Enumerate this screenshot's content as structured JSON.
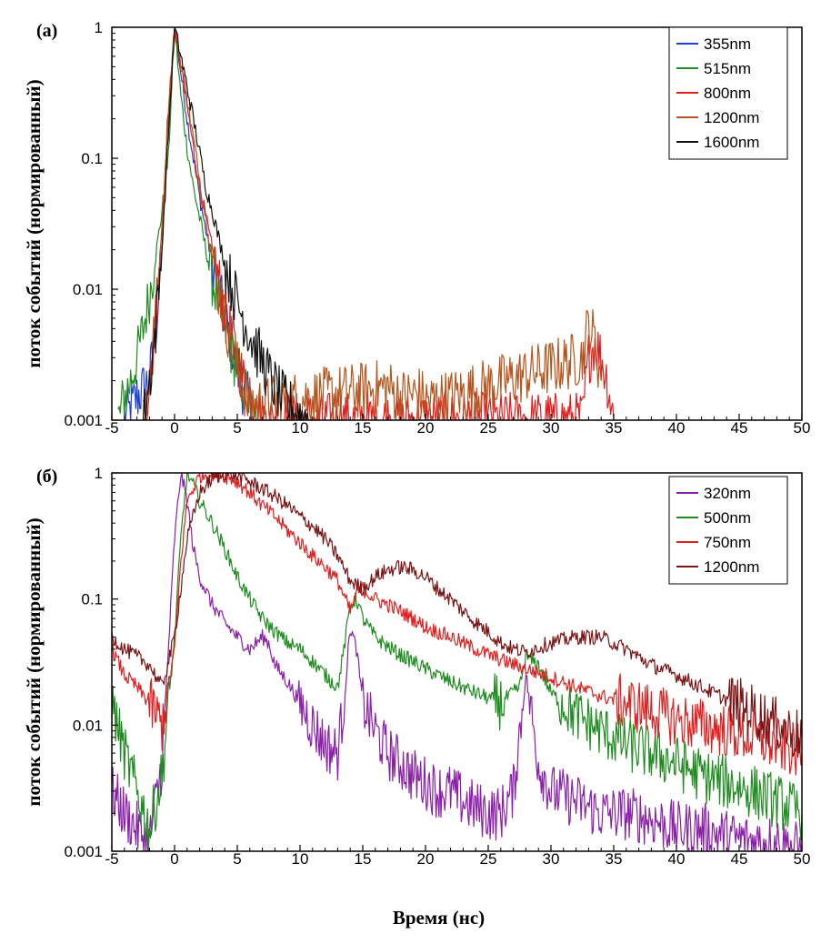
{
  "chart_data": [
    {
      "type": "line",
      "panel_label": "(a)",
      "xlabel": "",
      "ylabel": "поток событий (нормированный)",
      "xlim": [
        -5,
        50
      ],
      "ylim": [
        0.001,
        1
      ],
      "yscale": "log",
      "x_ticks": [
        "-5",
        "0",
        "5",
        "10",
        "15",
        "20",
        "25",
        "30",
        "35",
        "40",
        "45",
        "50"
      ],
      "y_ticks": [
        "0.001",
        "0.01",
        "0.1",
        "1"
      ],
      "legend_position": "top-right",
      "series": [
        {
          "name": "355nm",
          "color": "#1f3fd0",
          "x": [
            -4.0,
            -3.5,
            -3.0,
            -2.0,
            -1.5,
            -1.0,
            -0.5,
            0.0,
            0.5,
            1.0,
            1.5,
            2.0,
            2.5,
            3.0,
            3.5,
            4.0,
            4.5,
            5.0,
            5.5,
            6.0,
            6.5
          ],
          "y": [
            0.001,
            0.0012,
            0.0015,
            0.002,
            0.005,
            0.02,
            0.2,
            1.0,
            0.45,
            0.2,
            0.1,
            0.05,
            0.028,
            0.016,
            0.01,
            0.006,
            0.004,
            0.0025,
            0.0017,
            0.0013,
            0.001
          ]
        },
        {
          "name": "515nm",
          "color": "#1e8c1e",
          "x": [
            -4.5,
            -4.0,
            -3.5,
            -3.0,
            -2.5,
            -2.0,
            -1.5,
            -1.0,
            -0.5,
            0.0,
            0.5,
            1.0,
            1.5,
            2.0,
            2.5,
            3.0,
            3.5,
            4.0,
            4.5,
            5.0,
            5.5,
            6.0,
            6.5
          ],
          "y": [
            0.001,
            0.0015,
            0.002,
            0.003,
            0.005,
            0.009,
            0.018,
            0.04,
            0.1,
            1.0,
            0.3,
            0.12,
            0.06,
            0.035,
            0.02,
            0.012,
            0.008,
            0.005,
            0.0035,
            0.0025,
            0.0018,
            0.0013,
            0.001
          ]
        },
        {
          "name": "800nm",
          "color": "#e02020",
          "x": [
            -2.5,
            -2.0,
            -1.5,
            -1.0,
            -0.5,
            0.0,
            0.5,
            1.0,
            1.5,
            2.0,
            2.5,
            3.0,
            3.5,
            4.0,
            4.5,
            5.0,
            5.5,
            6.0,
            6.5,
            7.0,
            32.5,
            33.0,
            33.5,
            34.0,
            34.5,
            35.0
          ],
          "y": [
            0.001,
            0.002,
            0.006,
            0.03,
            0.2,
            1.0,
            0.5,
            0.25,
            0.12,
            0.06,
            0.035,
            0.02,
            0.012,
            0.007,
            0.0045,
            0.003,
            0.002,
            0.0015,
            0.0012,
            0.001,
            0.001,
            0.003,
            0.004,
            0.003,
            0.002,
            0.001
          ]
        },
        {
          "name": "1200nm",
          "color": "#b5541c",
          "x": [
            -2.5,
            -2.0,
            -1.5,
            -1.0,
            -0.5,
            0.0,
            0.5,
            1.0,
            1.5,
            2.0,
            2.5,
            3.0,
            3.5,
            4.0,
            4.5,
            5.0,
            5.5,
            6.0,
            17.0,
            18.0,
            19.5,
            20.0,
            22.0,
            32.5,
            33.0,
            33.5,
            34.0
          ],
          "y": [
            0.001,
            0.002,
            0.006,
            0.03,
            0.25,
            1.0,
            0.55,
            0.28,
            0.14,
            0.07,
            0.035,
            0.018,
            0.01,
            0.006,
            0.004,
            0.0025,
            0.0018,
            0.0013,
            0.0018,
            0.0015,
            0.0016,
            0.0014,
            0.0015,
            0.003,
            0.0055,
            0.004,
            0.002
          ]
        },
        {
          "name": "1600nm",
          "color": "#111111",
          "x": [
            -2.5,
            -2.0,
            -1.5,
            -1.0,
            -0.5,
            0.0,
            0.5,
            1.0,
            1.5,
            2.0,
            2.5,
            3.0,
            3.5,
            4.0,
            4.5,
            5.0,
            5.5,
            6.0,
            6.5,
            7.0,
            7.5,
            8.0,
            8.5,
            9.0,
            9.5,
            10.0,
            10.5,
            11.0
          ],
          "y": [
            0.001,
            0.002,
            0.005,
            0.02,
            0.15,
            1.0,
            0.6,
            0.35,
            0.2,
            0.11,
            0.06,
            0.04,
            0.025,
            0.016,
            0.011,
            0.008,
            0.006,
            0.0045,
            0.0035,
            0.0028,
            0.0022,
            0.0018,
            0.0015,
            0.0013,
            0.0012,
            0.0011,
            0.00105,
            0.001
          ]
        }
      ]
    },
    {
      "type": "line",
      "panel_label": "(б)",
      "xlabel": "Время (нс)",
      "ylabel": "поток событий (нормированный)",
      "xlim": [
        -5,
        50
      ],
      "ylim": [
        0.001,
        1
      ],
      "yscale": "log",
      "x_ticks": [
        "-5",
        "0",
        "5",
        "10",
        "15",
        "20",
        "25",
        "30",
        "35",
        "40",
        "45",
        "50"
      ],
      "y_ticks": [
        "0.001",
        "0.01",
        "0.1",
        "1"
      ],
      "legend_position": "top-right",
      "series": [
        {
          "name": "320nm",
          "color": "#8a1fa8",
          "x": [
            -5,
            -4,
            -3,
            -2,
            -1,
            0,
            0.5,
            1,
            1.5,
            2,
            3,
            4,
            5,
            6,
            7,
            7.5,
            8,
            9,
            10,
            11,
            12,
            13,
            13.5,
            14,
            14.5,
            15,
            16,
            17,
            18,
            19,
            20,
            21,
            22,
            23,
            24,
            25,
            26,
            27,
            28,
            29,
            30,
            32,
            34,
            36,
            38,
            40,
            42,
            44,
            46,
            48,
            50
          ],
          "y": [
            0.003,
            0.002,
            0.0015,
            0.0012,
            0.005,
            0.3,
            1.0,
            0.6,
            0.25,
            0.15,
            0.09,
            0.065,
            0.05,
            0.04,
            0.05,
            0.045,
            0.03,
            0.022,
            0.015,
            0.01,
            0.007,
            0.006,
            0.015,
            0.06,
            0.04,
            0.015,
            0.009,
            0.006,
            0.005,
            0.004,
            0.0035,
            0.003,
            0.003,
            0.0025,
            0.0022,
            0.002,
            0.002,
            0.003,
            0.025,
            0.005,
            0.003,
            0.0025,
            0.002,
            0.002,
            0.0018,
            0.0015,
            0.0015,
            0.0013,
            0.0012,
            0.0012,
            0.001
          ]
        },
        {
          "name": "500nm",
          "color": "#1e8c1e",
          "x": [
            -5,
            -4,
            -3,
            -2,
            -1,
            0,
            0.5,
            1,
            1.5,
            2,
            3,
            4,
            5,
            6,
            7,
            8,
            9,
            10,
            11,
            12,
            13,
            13.5,
            14,
            14.5,
            15,
            16,
            17,
            18,
            19,
            20,
            22,
            24,
            26,
            27.5,
            28,
            29,
            30,
            32,
            34,
            36,
            38,
            40,
            42,
            44,
            46,
            48,
            50
          ],
          "y": [
            0.015,
            0.006,
            0.003,
            0.0015,
            0.004,
            0.05,
            0.3,
            1.0,
            0.8,
            0.6,
            0.4,
            0.25,
            0.15,
            0.1,
            0.07,
            0.055,
            0.045,
            0.04,
            0.032,
            0.025,
            0.02,
            0.04,
            0.09,
            0.1,
            0.07,
            0.05,
            0.042,
            0.036,
            0.032,
            0.028,
            0.022,
            0.018,
            0.015,
            0.02,
            0.035,
            0.03,
            0.018,
            0.012,
            0.009,
            0.007,
            0.006,
            0.005,
            0.004,
            0.0035,
            0.003,
            0.0025,
            0.002
          ]
        },
        {
          "name": "750nm",
          "color": "#e02020",
          "x": [
            -5,
            -4,
            -3,
            -2,
            -1,
            0,
            0.5,
            1,
            2,
            3,
            4,
            5,
            6,
            7,
            8,
            9,
            10,
            11,
            12,
            13,
            14,
            14.5,
            15,
            16,
            17,
            18,
            19,
            20,
            22,
            24,
            26,
            28,
            30,
            32,
            34,
            36,
            38,
            40,
            42,
            44,
            46,
            48,
            50
          ],
          "y": [
            0.04,
            0.025,
            0.02,
            0.015,
            0.01,
            0.04,
            0.2,
            0.6,
            0.95,
            1.0,
            0.95,
            0.85,
            0.7,
            0.55,
            0.45,
            0.35,
            0.28,
            0.22,
            0.18,
            0.14,
            0.08,
            0.11,
            0.12,
            0.1,
            0.09,
            0.08,
            0.07,
            0.06,
            0.05,
            0.04,
            0.033,
            0.028,
            0.024,
            0.02,
            0.017,
            0.015,
            0.013,
            0.011,
            0.01,
            0.009,
            0.008,
            0.007,
            0.006
          ]
        },
        {
          "name": "1200nm",
          "color": "#7a1414",
          "x": [
            -5,
            -4,
            -3,
            -2,
            -1,
            0,
            1,
            2,
            3,
            4,
            5,
            6,
            7,
            8,
            9,
            10,
            11,
            12,
            13,
            14,
            15,
            16,
            17,
            18,
            19,
            20,
            21,
            22,
            23,
            24,
            25,
            26,
            27,
            28,
            30,
            32,
            34,
            36,
            38,
            40,
            42,
            44,
            46,
            48,
            50
          ],
          "y": [
            0.05,
            0.04,
            0.035,
            0.03,
            0.02,
            0.05,
            0.3,
            0.7,
            0.9,
            1.0,
            0.95,
            0.85,
            0.75,
            0.65,
            0.55,
            0.45,
            0.38,
            0.3,
            0.22,
            0.14,
            0.12,
            0.15,
            0.17,
            0.18,
            0.17,
            0.15,
            0.12,
            0.1,
            0.08,
            0.065,
            0.055,
            0.045,
            0.04,
            0.038,
            0.045,
            0.05,
            0.05,
            0.04,
            0.03,
            0.025,
            0.02,
            0.016,
            0.013,
            0.01,
            0.008
          ]
        }
      ]
    }
  ]
}
